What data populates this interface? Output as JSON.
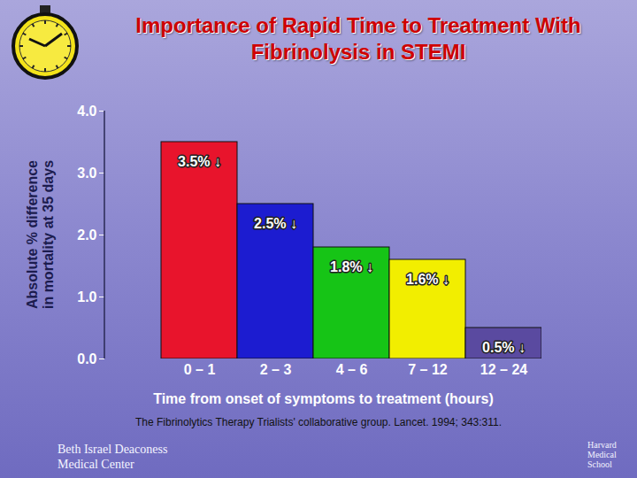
{
  "chart_data": {
    "type": "bar",
    "title": "Importance of Rapid Time to Treatment With Fibrinolysis in STEMI",
    "x_label": "Time from onset of symptoms to treatment (hours)",
    "y_label": "Absolute % difference in mortality at 35 days",
    "categories": [
      "0 – 1",
      "2 – 3",
      "4 – 6",
      "7 – 12",
      "12 – 24"
    ],
    "values": [
      3.5,
      2.5,
      1.8,
      1.6,
      0.5
    ],
    "value_labels": [
      "3.5% ↓",
      "2.5% ↓",
      "1.8% ↓",
      "1.6% ↓",
      "0.5% ↓"
    ],
    "data_labels": true,
    "colors": [
      "#e8142c",
      "#1c1cd0",
      "#16c416",
      "#f2ee00",
      "#5a4aa0"
    ],
    "ylim": [
      0,
      4
    ],
    "yticks": [
      {
        "value": 0,
        "label": "0.0"
      },
      {
        "value": 1,
        "label": "1.0"
      },
      {
        "value": 2,
        "label": "2.0"
      },
      {
        "value": 3,
        "label": "3.0"
      },
      {
        "value": 4,
        "label": "4.0"
      }
    ],
    "grid": false,
    "caption": "The Fibrinolytics Therapy Trialists' collaborative group. Lancet. 1994; 343:311.",
    "annotations": [
      "Beth Israel Deaconess Medical Center",
      "Harvard Medical School"
    ]
  }
}
